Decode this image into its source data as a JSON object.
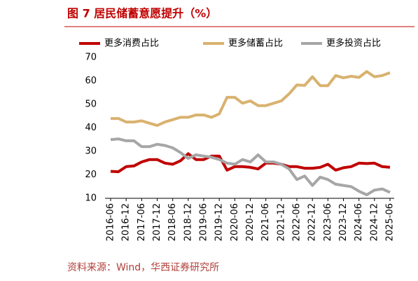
{
  "chart_data": {
    "type": "line",
    "title": "图 7  居民储蓄意愿提升（%）",
    "source": "资料来源：Wind，华西证券研究所",
    "categories": [
      "2016-06",
      null,
      "2016-12",
      null,
      "2017-06",
      null,
      "2017-12",
      null,
      "2018-06",
      null,
      "2018-12",
      null,
      "2019-06",
      null,
      "2019-12",
      null,
      "2020-06",
      null,
      "2020-12",
      null,
      "2021-06",
      null,
      "2021-12",
      null,
      "2022-06",
      null,
      "2022-12",
      null,
      "2023-06",
      null,
      "2023-12",
      null,
      "2024-06",
      null,
      "2024-12",
      null,
      "2025-06"
    ],
    "series": [
      {
        "name": "更多消费占比",
        "color": "#c00000",
        "values": [
          21.5,
          21.3,
          23.5,
          23.8,
          25.5,
          26.5,
          26.5,
          25,
          24.5,
          26,
          29,
          26.5,
          26.5,
          28,
          28,
          22,
          23.5,
          23.5,
          23.2,
          22.5,
          25,
          25,
          24.5,
          23.5,
          23.5,
          22.8,
          22.8,
          23.2,
          24.5,
          22,
          23,
          23.5,
          25,
          24.8,
          25,
          23.5,
          23.2
        ]
      },
      {
        "name": "更多储蓄占比",
        "color": "#d9b26f",
        "values": [
          44,
          44,
          42.5,
          42.5,
          43,
          42,
          41,
          42.5,
          43.5,
          44.5,
          44.5,
          45.5,
          45.5,
          44.5,
          46,
          53,
          53,
          50.5,
          51.5,
          49.5,
          49.5,
          50.5,
          51.5,
          54.5,
          58.3,
          58.1,
          61.8,
          58,
          58,
          62.3,
          61.3,
          62,
          61.5,
          64,
          61.8,
          62.3,
          63.5
        ]
      },
      {
        "name": "更多投资占比",
        "color": "#a6a6a6",
        "values": [
          35,
          35.3,
          34.5,
          34.5,
          32,
          32,
          33,
          32.5,
          31.5,
          29.5,
          27,
          28.5,
          28,
          27.5,
          26.5,
          25,
          24.5,
          26.5,
          25.5,
          28.5,
          25.5,
          25.5,
          24.5,
          22.5,
          18,
          19.5,
          15.5,
          19,
          18,
          16,
          15.5,
          15,
          13,
          11.5,
          13.5,
          14,
          12.5
        ]
      }
    ],
    "ylim": [
      10,
      70
    ],
    "yticks": [
      10,
      20,
      30,
      40,
      50,
      60,
      70
    ],
    "grid": false
  }
}
